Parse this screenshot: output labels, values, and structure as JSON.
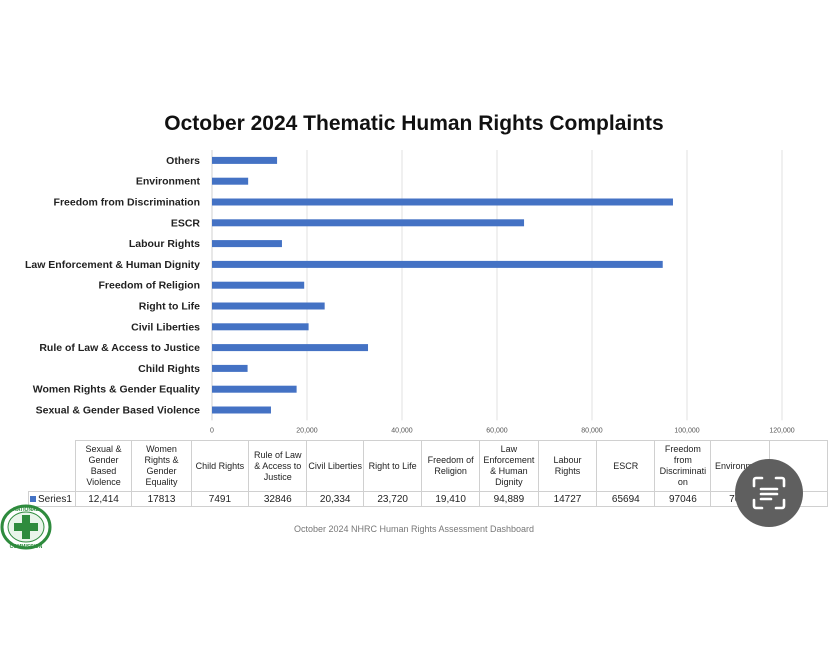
{
  "chart_data": {
    "type": "bar",
    "orientation": "horizontal",
    "title": "October 2024 Thematic Human Rights Complaints",
    "categories": [
      "Sexual & Gender Based Violence",
      "Women Rights & Gender Equality",
      "Child Rights",
      "Rule of Law & Access to Justice",
      "Civil Liberties",
      "Right to Life",
      "Freedom of Religion",
      "Law Enforcement & Human Dignity",
      "Labour Rights",
      "ESCR",
      "Freedom from Discrimination",
      "Environment",
      "Others"
    ],
    "series": [
      {
        "name": "Series1",
        "values": [
          12414,
          17813,
          7491,
          32846,
          20334,
          23720,
          19410,
          94889,
          14727,
          65694,
          97046,
          7612,
          13700
        ]
      }
    ],
    "xlim": [
      0,
      120000
    ],
    "x_ticks": [
      "0",
      "20,000",
      "40,000",
      "60,000",
      "80,000",
      "100,000",
      "120,000"
    ],
    "grid": true,
    "legend": "none",
    "bar_color": "#4472c4",
    "table": {
      "headers": [
        "Sexual & Gender Based Violence",
        "Women Rights & Gender Equality",
        "Child Rights",
        "Rule of Law & Access to Justice",
        "Civil Liberties",
        "Right to Life",
        "Freedom of Religion",
        "Law Enforcement & Human Dignity",
        "Labour Rights",
        "ESCR",
        "Freedom from Discriminati on",
        "Environment",
        ""
      ],
      "series_label": "Series1",
      "values": [
        "12,414",
        "17813",
        "7491",
        "32846",
        "20,334",
        "23,720",
        "19,410",
        "94,889",
        "14727",
        "65694",
        "97046",
        "7612",
        ""
      ]
    }
  },
  "footer": "October 2024 NHRC Human Rights Assessment Dashboard",
  "logo": {
    "icon": "nhrc-seal-icon",
    "text_top": "NATIONAL",
    "text_bottom": "COMMISSION"
  },
  "lens_icon": "scan-lens-icon"
}
